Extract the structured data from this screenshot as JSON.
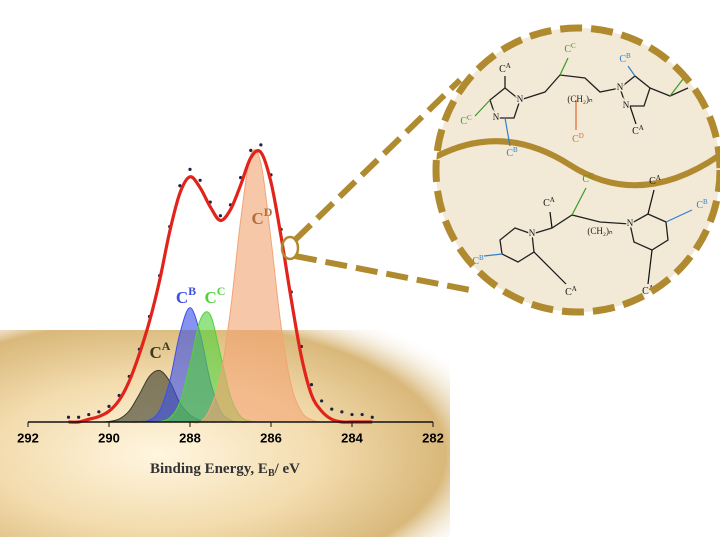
{
  "chart_data": {
    "type": "xps",
    "xlabel": [
      "Binding Energy, E",
      "B",
      "/ eV"
    ],
    "xlim": [
      292,
      282
    ],
    "ylim": [
      0,
      105
    ],
    "xticks": [
      292,
      290,
      288,
      286,
      284,
      282
    ],
    "x": [
      291,
      290.75,
      290.5,
      290.25,
      290,
      289.75,
      289.5,
      289.25,
      289,
      288.75,
      288.5,
      288.25,
      288,
      287.75,
      287.5,
      287.25,
      287,
      286.75,
      286.5,
      286.25,
      286,
      285.75,
      285.5,
      285.25,
      285,
      284.75,
      284.5,
      284.25,
      284,
      283.75,
      283.5
    ],
    "series": [
      {
        "name": "C",
        "superscript": "A",
        "style": "area",
        "color": "#3b3b28",
        "values": [
          0,
          0,
          0,
          0,
          0.2,
          1.1,
          4.1,
          10.2,
          16.8,
          18.9,
          14.9,
          7,
          2.6,
          0.6,
          0,
          0,
          0,
          0,
          0,
          0,
          0,
          0,
          0,
          0,
          0,
          0,
          0,
          0,
          0,
          0,
          0
        ]
      },
      {
        "name": "C",
        "superscript": "B",
        "style": "area",
        "color": "#3c50e6",
        "values": [
          0,
          0,
          0,
          0,
          0,
          0,
          0,
          0,
          0.7,
          4.2,
          15.1,
          32.5,
          42,
          32.5,
          15.1,
          4.2,
          0.7,
          0,
          0,
          0,
          0,
          0,
          0,
          0,
          0,
          0,
          0,
          0,
          0,
          0,
          0
        ]
      },
      {
        "name": "C",
        "superscript": "C",
        "style": "area",
        "color": "#52d23c",
        "values": [
          0,
          0,
          0,
          0,
          0,
          0,
          0,
          0,
          0,
          0.2,
          1.5,
          7.3,
          21.3,
          37.4,
          39.4,
          24.9,
          9.4,
          2.1,
          0.3,
          0,
          0,
          0,
          0,
          0,
          0,
          0,
          0,
          0,
          0,
          0,
          0
        ]
      },
      {
        "name": "C",
        "superscript": "D",
        "style": "area",
        "color": "#f2a474",
        "values": [
          0,
          0,
          0,
          0,
          0,
          0,
          0,
          0,
          0,
          0,
          0,
          0,
          0,
          0,
          5,
          16.8,
          41,
          74,
          98,
          95,
          67,
          35,
          13.5,
          3.8,
          0.8,
          0,
          0,
          0,
          0,
          0,
          0
        ]
      },
      {
        "style": "points",
        "color": "#1c2340",
        "values": [
          1,
          1,
          2,
          3,
          5,
          9,
          16,
          26,
          38,
          53,
          71,
          86,
          92,
          88,
          80,
          75,
          79,
          89,
          99,
          101,
          90,
          70,
          47,
          27,
          13,
          7,
          4,
          3,
          2,
          2,
          1
        ]
      },
      {
        "style": "line",
        "color": "#e2231c",
        "values": [
          0,
          0,
          1,
          2,
          4,
          8,
          15,
          25,
          37,
          52,
          70,
          84,
          90,
          86,
          79,
          74,
          78,
          87,
          97,
          99,
          88,
          68,
          45,
          24,
          10,
          4,
          1,
          0,
          0,
          0,
          0
        ]
      }
    ]
  },
  "inset": {
    "labels": [
      {
        "base": "C",
        "sup": "A",
        "color": "#111"
      },
      {
        "base": "C",
        "sup": "C",
        "color": "#3a9a2a"
      },
      {
        "base": "C",
        "sup": "B",
        "color": "#2f7fd0"
      },
      {
        "base": "C",
        "sup": "C",
        "color": "#3a9a2a"
      },
      {
        "base": "C",
        "sup": "C",
        "color": "#3a9a2a"
      },
      {
        "base": "C",
        "sup": "B",
        "color": "#2f7fd0"
      },
      {
        "base": "C",
        "sup": "D",
        "color": "#e06a2a"
      },
      {
        "base": "C",
        "sup": "A",
        "color": "#111"
      },
      {
        "base": "C",
        "sup": "A",
        "color": "#111"
      },
      {
        "base": "C",
        "sup": "C",
        "color": "#3a9a2a"
      },
      {
        "base": "C",
        "sup": "A",
        "color": "#111"
      },
      {
        "base": "C",
        "sup": "B",
        "color": "#2f7fd0"
      },
      {
        "base": "C",
        "sup": "B",
        "color": "#2f7fd0"
      },
      {
        "base": "C",
        "sup": "A",
        "color": "#111"
      },
      {
        "base": "C",
        "sup": "A",
        "color": "#111"
      }
    ],
    "chains": [
      "(CH₂)ₙ",
      "(CH₂)ₙ"
    ],
    "atoms": [
      "N",
      "N",
      "N",
      "N",
      "N",
      "N"
    ]
  }
}
